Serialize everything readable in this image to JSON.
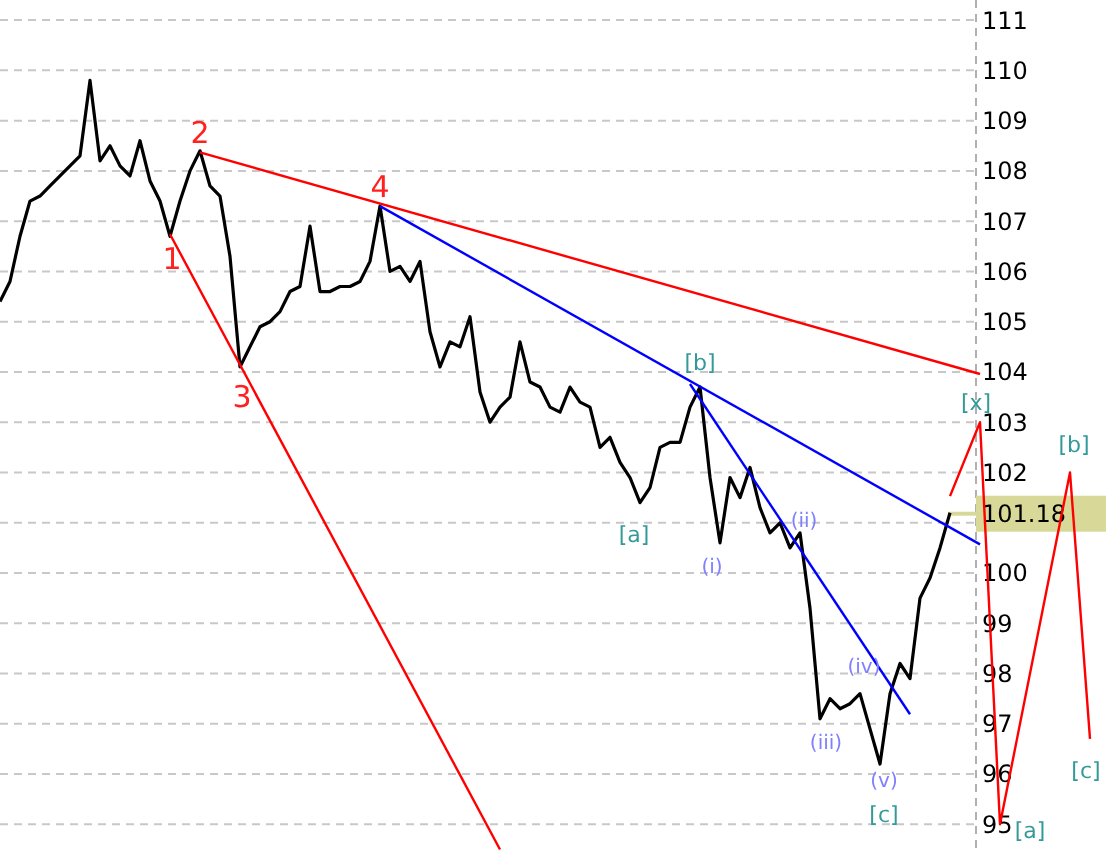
{
  "chart_data": {
    "type": "line",
    "ylim": [
      94.45,
      111.4
    ],
    "categories": [
      null,
      null,
      null,
      null,
      null,
      null,
      null,
      null,
      null,
      null,
      null,
      null,
      null,
      null,
      null,
      null,
      null,
      null,
      null,
      null,
      null,
      null,
      null,
      null,
      null,
      null,
      null,
      null,
      null,
      null,
      null,
      null,
      null,
      null,
      null,
      null,
      null,
      null,
      null,
      null,
      null,
      null,
      null,
      null,
      null,
      null,
      null,
      null,
      null,
      null,
      null,
      null,
      null,
      null,
      null,
      null,
      null,
      null,
      null,
      null,
      null,
      null,
      null,
      null,
      null,
      null,
      null,
      null,
      null,
      null,
      null,
      null,
      null,
      null,
      null,
      null,
      null,
      null,
      null,
      null,
      null,
      null,
      null,
      null,
      null,
      null,
      null,
      null,
      null,
      null,
      null,
      null,
      null,
      null,
      null,
      null,
      null,
      null,
      null,
      null,
      null,
      null,
      null,
      null,
      null,
      null,
      null,
      null,
      null,
      null,
      null
    ],
    "yticks": [
      95,
      96,
      97,
      98,
      99,
      100,
      {
        "value": 101,
        "label": null
      },
      102,
      103,
      104,
      105,
      106,
      107,
      108,
      109,
      110,
      111
    ],
    "tick_labels": "y",
    "grid": "y",
    "line_style": "solid",
    "series": [
      {
        "color": "#000000",
        "values": [
          105.4,
          105.8,
          106.7,
          107.4,
          107.5,
          107.7,
          107.9,
          108.1,
          108.3,
          109.8,
          108.2,
          108.5,
          108.1,
          107.9,
          108.6,
          107.8,
          107.4,
          106.7,
          107.4,
          108,
          108.4,
          107.7,
          107.5,
          106.3,
          104.1,
          104.5,
          104.9,
          105,
          105.2,
          105.6,
          105.7,
          106.9,
          105.6,
          105.6,
          105.7,
          105.7,
          105.8,
          106.2,
          107.3,
          106,
          106.1,
          105.8,
          106.2,
          104.8,
          104.1,
          104.6,
          104.5,
          105.1,
          103.6,
          103,
          103.3,
          103.5,
          104.6,
          103.8,
          103.7,
          103.3,
          103.2,
          103.7,
          103.4,
          103.3,
          102.5,
          102.7,
          102.2,
          101.9,
          101.4,
          101.7,
          102.5,
          102.6,
          102.6,
          103.3,
          103.7,
          101.9,
          100.6,
          101.9,
          101.5,
          102.1,
          101.3,
          100.8,
          101,
          100.5,
          100.8,
          99.3,
          97.1,
          97.5,
          97.3,
          97.4,
          97.6,
          96.9,
          96.2,
          97.6,
          98.2,
          97.9,
          99.5,
          99.9,
          100.5,
          101.2,
          null,
          null,
          null,
          null,
          null,
          null,
          null,
          null,
          null,
          null,
          null,
          null,
          null,
          null,
          null
        ]
      },
      {
        "color": "#ff0000",
        "values": [
          null,
          null,
          null,
          null,
          null,
          null,
          null,
          null,
          null,
          null,
          null,
          null,
          null,
          null,
          null,
          null,
          null,
          null,
          null,
          null,
          108.37,
          null,
          null,
          null,
          null,
          null,
          null,
          null,
          null,
          null,
          null,
          null,
          null,
          null,
          null,
          null,
          null,
          null,
          null,
          null,
          null,
          null,
          null,
          null,
          null,
          null,
          null,
          null,
          null,
          null,
          null,
          null,
          null,
          null,
          null,
          null,
          null,
          null,
          null,
          null,
          null,
          null,
          null,
          null,
          null,
          null,
          null,
          null,
          null,
          null,
          null,
          null,
          null,
          null,
          null,
          null,
          null,
          null,
          null,
          null,
          null,
          null,
          null,
          null,
          null,
          null,
          null,
          null,
          null,
          null,
          null,
          null,
          null,
          null,
          null,
          null,
          null,
          null,
          103.96,
          null,
          null,
          null,
          null,
          null,
          null,
          null,
          null,
          null,
          null,
          null,
          null
        ]
      },
      {
        "color": "#ff0000",
        "values": [
          null,
          null,
          null,
          null,
          null,
          null,
          null,
          null,
          null,
          null,
          null,
          null,
          null,
          null,
          null,
          null,
          null,
          106.74,
          null,
          null,
          null,
          null,
          null,
          null,
          null,
          null,
          null,
          null,
          null,
          null,
          null,
          null,
          null,
          null,
          null,
          null,
          null,
          null,
          null,
          null,
          null,
          null,
          null,
          null,
          null,
          null,
          null,
          null,
          null,
          null,
          94.5,
          null,
          null,
          null,
          null,
          null,
          null,
          null,
          null,
          null,
          null,
          null,
          null,
          null,
          null,
          null,
          null,
          null,
          null,
          null,
          null,
          null,
          null,
          null,
          null,
          null,
          null,
          null,
          null,
          null,
          null,
          null,
          null,
          null,
          null,
          null,
          null,
          null,
          null,
          null,
          null,
          null,
          null,
          null,
          null,
          null,
          null,
          null,
          null,
          null,
          null,
          null,
          null,
          null,
          null,
          null,
          null,
          null,
          null,
          null,
          null
        ]
      },
      {
        "color": "#0000ff",
        "values": [
          null,
          null,
          null,
          null,
          null,
          null,
          null,
          null,
          null,
          null,
          null,
          null,
          null,
          null,
          null,
          null,
          null,
          null,
          null,
          null,
          null,
          null,
          null,
          null,
          null,
          null,
          null,
          null,
          null,
          null,
          null,
          null,
          null,
          null,
          null,
          null,
          null,
          null,
          107.3,
          null,
          null,
          null,
          null,
          null,
          null,
          null,
          null,
          null,
          null,
          null,
          null,
          null,
          null,
          null,
          null,
          null,
          null,
          null,
          null,
          null,
          null,
          null,
          null,
          null,
          null,
          null,
          null,
          null,
          null,
          null,
          null,
          null,
          null,
          null,
          null,
          null,
          null,
          null,
          null,
          null,
          null,
          null,
          null,
          null,
          null,
          null,
          null,
          null,
          null,
          null,
          null,
          null,
          null,
          null,
          null,
          null,
          null,
          null,
          100.57,
          null,
          null,
          null,
          null,
          null,
          null,
          null,
          null,
          null,
          null,
          null,
          null
        ]
      },
      {
        "color": "#0000ff",
        "values": [
          null,
          null,
          null,
          null,
          null,
          null,
          null,
          null,
          null,
          null,
          null,
          null,
          null,
          null,
          null,
          null,
          null,
          null,
          null,
          null,
          null,
          null,
          null,
          null,
          null,
          null,
          null,
          null,
          null,
          null,
          null,
          null,
          null,
          null,
          null,
          null,
          null,
          null,
          null,
          null,
          null,
          null,
          null,
          null,
          null,
          null,
          null,
          null,
          null,
          null,
          null,
          null,
          null,
          null,
          null,
          null,
          null,
          null,
          null,
          null,
          null,
          null,
          null,
          null,
          null,
          null,
          null,
          null,
          null,
          103.76,
          null,
          null,
          null,
          null,
          null,
          null,
          null,
          null,
          null,
          null,
          null,
          null,
          null,
          null,
          null,
          null,
          null,
          null,
          null,
          null,
          null,
          97.19,
          null,
          null,
          null,
          null,
          null,
          null,
          null,
          null,
          null,
          null,
          null,
          null,
          null,
          null,
          null,
          null,
          null,
          null,
          null
        ]
      },
      {
        "color": "#ff0000",
        "values": [
          null,
          null,
          null,
          null,
          null,
          null,
          null,
          null,
          null,
          null,
          null,
          null,
          null,
          null,
          null,
          null,
          null,
          null,
          null,
          null,
          null,
          null,
          null,
          null,
          null,
          null,
          null,
          null,
          null,
          null,
          null,
          null,
          null,
          null,
          null,
          null,
          null,
          null,
          null,
          null,
          null,
          null,
          null,
          null,
          null,
          null,
          null,
          null,
          null,
          null,
          null,
          null,
          null,
          null,
          null,
          null,
          null,
          null,
          null,
          null,
          null,
          null,
          null,
          null,
          null,
          null,
          null,
          null,
          null,
          null,
          null,
          null,
          null,
          null,
          null,
          null,
          null,
          null,
          null,
          null,
          null,
          null,
          null,
          null,
          null,
          null,
          null,
          null,
          null,
          null,
          null,
          null,
          null,
          null,
          null,
          101.53,
          null,
          null,
          103,
          null,
          95,
          null,
          null,
          null,
          null,
          null,
          null,
          102,
          null,
          96.7,
          null
        ]
      }
    ],
    "annotations": [
      "1",
      "2",
      "3",
      "4",
      "[a]",
      "[b]",
      "[c]",
      "[x]",
      "[a]",
      "[b]",
      "[c]",
      "(i)",
      "(ii)",
      "(iii)",
      "(iv)",
      "(v)"
    ],
    "ref_lines": [
      {
        "axis": "y",
        "value": 101.18,
        "label": "101.18",
        "color": "#d8d898"
      }
    ]
  }
}
